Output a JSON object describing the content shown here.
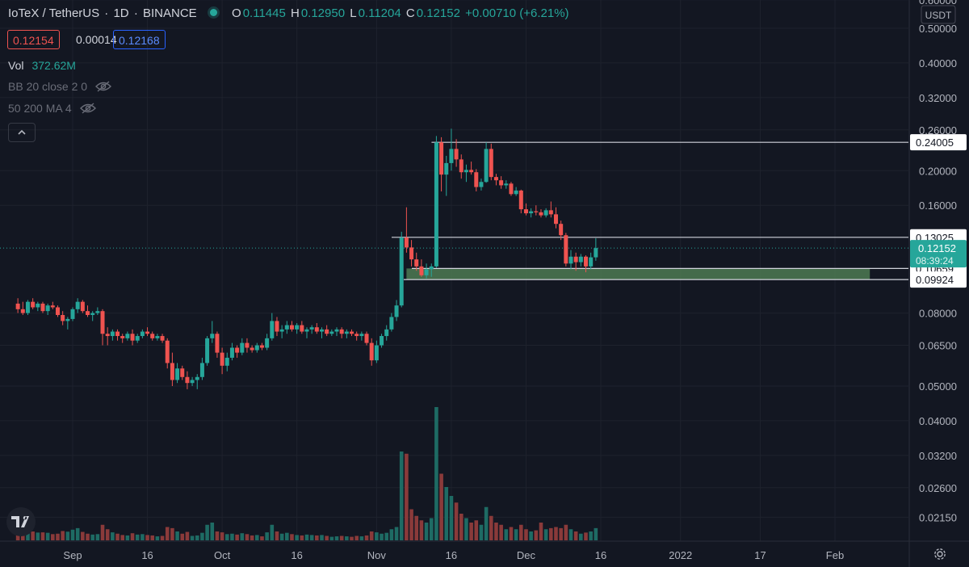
{
  "header": {
    "symbol": "IoTeX / TetherUS",
    "interval": "1D",
    "exchange": "BINANCE",
    "open_label": "O",
    "open": "0.11445",
    "high_label": "H",
    "high": "0.12950",
    "low_label": "L",
    "low": "0.11204",
    "close_label": "C",
    "close": "0.12152",
    "change": "+0.00710 (+6.21%)"
  },
  "quote": {
    "bid": "0.12154",
    "spread": "0.00014",
    "ask": "0.12168"
  },
  "indicators": {
    "vol_label": "Vol",
    "vol_value": "372.62M",
    "bb_label": "BB 20 close 2 0",
    "ma_label": "50 200 MA 4"
  },
  "colors": {
    "background": "#131722",
    "up": "#26a69a",
    "down": "#ef5350",
    "grid": "#1e222d",
    "zone": "#4e7a52"
  },
  "chart_data": {
    "type": "candlestick",
    "y_scale": "log",
    "currency": "USDT",
    "y_ticks": [
      0.6,
      0.5,
      0.4,
      0.32,
      0.26,
      0.2,
      0.16,
      0.08,
      0.065,
      0.05,
      0.04,
      0.032,
      0.026,
      0.0215
    ],
    "y_tick_labels": [
      "0.60000",
      "0.50000",
      "0.40000",
      "0.32000",
      "0.26000",
      "0.20000",
      "0.16000",
      "0.08000",
      "0.06500",
      "0.05000",
      "0.04000",
      "0.03200",
      "0.02600",
      "0.02150"
    ],
    "x_ticks": [
      {
        "label": "Sep",
        "date": "2021-09-01"
      },
      {
        "label": "16",
        "date": "2021-09-16"
      },
      {
        "label": "Oct",
        "date": "2021-10-01"
      },
      {
        "label": "16",
        "date": "2021-10-16"
      },
      {
        "label": "Nov",
        "date": "2021-11-01"
      },
      {
        "label": "16",
        "date": "2021-11-16"
      },
      {
        "label": "Dec",
        "date": "2021-12-01"
      },
      {
        "label": "16",
        "date": "2021-12-16"
      },
      {
        "label": "2022",
        "date": "2022-01-01"
      },
      {
        "label": "17",
        "date": "2022-01-17"
      },
      {
        "label": "Feb",
        "date": "2022-02-01"
      }
    ],
    "horizontal_lines": [
      {
        "price": 0.24005,
        "label": "0.24005"
      },
      {
        "price": 0.13025,
        "label": "0.13025"
      },
      {
        "price": 0.10659,
        "label": "0.10659"
      },
      {
        "price": 0.09924,
        "label": "0.09924"
      }
    ],
    "zone": {
      "top": 0.10659,
      "bottom": 0.09924,
      "start": "2021-11-07",
      "end": "2022-02-08"
    },
    "last_price": {
      "value": "0.12152",
      "countdown": "08:39:24"
    },
    "candles": [
      [
        "2021-08-21",
        0.085,
        0.088,
        0.08,
        0.082,
        45
      ],
      [
        "2021-08-22",
        0.082,
        0.086,
        0.079,
        0.08,
        38
      ],
      [
        "2021-08-23",
        0.08,
        0.087,
        0.079,
        0.086,
        52
      ],
      [
        "2021-08-24",
        0.086,
        0.088,
        0.082,
        0.083,
        40
      ],
      [
        "2021-08-25",
        0.083,
        0.086,
        0.081,
        0.085,
        35
      ],
      [
        "2021-08-26",
        0.085,
        0.086,
        0.08,
        0.081,
        36
      ],
      [
        "2021-08-27",
        0.081,
        0.085,
        0.079,
        0.084,
        34
      ],
      [
        "2021-08-28",
        0.084,
        0.086,
        0.082,
        0.083,
        28
      ],
      [
        "2021-08-29",
        0.083,
        0.084,
        0.078,
        0.079,
        30
      ],
      [
        "2021-08-30",
        0.079,
        0.081,
        0.074,
        0.076,
        42
      ],
      [
        "2021-08-31",
        0.076,
        0.078,
        0.072,
        0.077,
        39
      ],
      [
        "2021-09-01",
        0.077,
        0.083,
        0.076,
        0.082,
        48
      ],
      [
        "2021-09-02",
        0.082,
        0.088,
        0.08,
        0.086,
        55
      ],
      [
        "2021-09-03",
        0.086,
        0.087,
        0.08,
        0.081,
        38
      ],
      [
        "2021-09-04",
        0.081,
        0.084,
        0.078,
        0.079,
        30
      ],
      [
        "2021-09-05",
        0.079,
        0.081,
        0.076,
        0.08,
        26
      ],
      [
        "2021-09-06",
        0.08,
        0.083,
        0.079,
        0.081,
        28
      ],
      [
        "2021-09-07",
        0.081,
        0.082,
        0.065,
        0.07,
        70
      ],
      [
        "2021-09-08",
        0.07,
        0.073,
        0.065,
        0.069,
        50
      ],
      [
        "2021-09-09",
        0.069,
        0.072,
        0.067,
        0.071,
        36
      ],
      [
        "2021-09-10",
        0.071,
        0.072,
        0.067,
        0.069,
        30
      ],
      [
        "2021-09-11",
        0.069,
        0.07,
        0.066,
        0.068,
        24
      ],
      [
        "2021-09-12",
        0.068,
        0.071,
        0.067,
        0.07,
        22
      ],
      [
        "2021-09-13",
        0.07,
        0.072,
        0.065,
        0.067,
        32
      ],
      [
        "2021-09-14",
        0.067,
        0.07,
        0.066,
        0.069,
        26
      ],
      [
        "2021-09-15",
        0.069,
        0.072,
        0.068,
        0.071,
        28
      ],
      [
        "2021-09-16",
        0.071,
        0.073,
        0.069,
        0.07,
        24
      ],
      [
        "2021-09-17",
        0.07,
        0.071,
        0.067,
        0.068,
        22
      ],
      [
        "2021-09-18",
        0.068,
        0.07,
        0.067,
        0.069,
        18
      ],
      [
        "2021-09-19",
        0.069,
        0.07,
        0.066,
        0.067,
        20
      ],
      [
        "2021-09-20",
        0.067,
        0.068,
        0.056,
        0.058,
        60
      ],
      [
        "2021-09-21",
        0.058,
        0.062,
        0.05,
        0.052,
        55
      ],
      [
        "2021-09-22",
        0.052,
        0.058,
        0.051,
        0.056,
        40
      ],
      [
        "2021-09-23",
        0.056,
        0.057,
        0.052,
        0.053,
        30
      ],
      [
        "2021-09-24",
        0.053,
        0.055,
        0.049,
        0.051,
        38
      ],
      [
        "2021-09-25",
        0.051,
        0.053,
        0.05,
        0.052,
        20
      ],
      [
        "2021-09-26",
        0.052,
        0.054,
        0.049,
        0.053,
        22
      ],
      [
        "2021-09-27",
        0.053,
        0.06,
        0.052,
        0.058,
        34
      ],
      [
        "2021-09-28",
        0.058,
        0.069,
        0.057,
        0.068,
        70
      ],
      [
        "2021-09-29",
        0.068,
        0.076,
        0.066,
        0.07,
        80
      ],
      [
        "2021-09-30",
        0.07,
        0.071,
        0.06,
        0.062,
        40
      ],
      [
        "2021-10-01",
        0.062,
        0.064,
        0.054,
        0.057,
        36
      ],
      [
        "2021-10-02",
        0.057,
        0.062,
        0.055,
        0.06,
        28
      ],
      [
        "2021-10-03",
        0.06,
        0.066,
        0.059,
        0.064,
        30
      ],
      [
        "2021-10-04",
        0.064,
        0.065,
        0.06,
        0.062,
        26
      ],
      [
        "2021-10-05",
        0.062,
        0.068,
        0.061,
        0.066,
        32
      ],
      [
        "2021-10-06",
        0.066,
        0.068,
        0.062,
        0.064,
        28
      ],
      [
        "2021-10-07",
        0.064,
        0.065,
        0.062,
        0.063,
        22
      ],
      [
        "2021-10-08",
        0.063,
        0.066,
        0.062,
        0.065,
        24
      ],
      [
        "2021-10-09",
        0.065,
        0.066,
        0.063,
        0.064,
        18
      ],
      [
        "2021-10-10",
        0.064,
        0.07,
        0.063,
        0.068,
        36
      ],
      [
        "2021-10-11",
        0.068,
        0.08,
        0.067,
        0.076,
        70
      ],
      [
        "2021-10-12",
        0.076,
        0.078,
        0.069,
        0.071,
        40
      ],
      [
        "2021-10-13",
        0.071,
        0.074,
        0.068,
        0.072,
        30
      ],
      [
        "2021-10-14",
        0.072,
        0.076,
        0.07,
        0.074,
        34
      ],
      [
        "2021-10-15",
        0.074,
        0.076,
        0.071,
        0.072,
        28
      ],
      [
        "2021-10-16",
        0.072,
        0.075,
        0.07,
        0.074,
        24
      ],
      [
        "2021-10-17",
        0.074,
        0.076,
        0.07,
        0.071,
        22
      ],
      [
        "2021-10-18",
        0.071,
        0.073,
        0.068,
        0.072,
        26
      ],
      [
        "2021-10-19",
        0.072,
        0.074,
        0.07,
        0.073,
        24
      ],
      [
        "2021-10-20",
        0.073,
        0.075,
        0.07,
        0.071,
        22
      ],
      [
        "2021-10-21",
        0.071,
        0.073,
        0.068,
        0.072,
        24
      ],
      [
        "2021-10-22",
        0.072,
        0.074,
        0.069,
        0.07,
        20
      ],
      [
        "2021-10-23",
        0.07,
        0.072,
        0.069,
        0.071,
        16
      ],
      [
        "2021-10-24",
        0.071,
        0.073,
        0.069,
        0.072,
        18
      ],
      [
        "2021-10-25",
        0.072,
        0.073,
        0.068,
        0.07,
        20
      ],
      [
        "2021-10-26",
        0.07,
        0.072,
        0.068,
        0.071,
        18
      ],
      [
        "2021-10-27",
        0.071,
        0.072,
        0.069,
        0.07,
        16
      ],
      [
        "2021-10-28",
        0.07,
        0.071,
        0.067,
        0.069,
        20
      ],
      [
        "2021-10-29",
        0.069,
        0.071,
        0.067,
        0.07,
        18
      ],
      [
        "2021-10-30",
        0.07,
        0.071,
        0.065,
        0.066,
        22
      ],
      [
        "2021-10-31",
        0.066,
        0.068,
        0.057,
        0.059,
        40
      ],
      [
        "2021-11-01",
        0.059,
        0.067,
        0.058,
        0.065,
        36
      ],
      [
        "2021-11-02",
        0.065,
        0.07,
        0.064,
        0.069,
        30
      ],
      [
        "2021-11-03",
        0.069,
        0.074,
        0.067,
        0.072,
        34
      ],
      [
        "2021-11-04",
        0.072,
        0.08,
        0.071,
        0.078,
        50
      ],
      [
        "2021-11-05",
        0.078,
        0.087,
        0.076,
        0.084,
        60
      ],
      [
        "2021-11-06",
        0.084,
        0.135,
        0.083,
        0.13,
        400
      ],
      [
        "2021-11-07",
        0.13,
        0.158,
        0.118,
        0.122,
        390
      ],
      [
        "2021-11-08",
        0.122,
        0.128,
        0.108,
        0.113,
        140
      ],
      [
        "2021-11-09",
        0.113,
        0.118,
        0.105,
        0.108,
        110
      ],
      [
        "2021-11-10",
        0.108,
        0.113,
        0.101,
        0.102,
        90
      ],
      [
        "2021-11-11",
        0.102,
        0.11,
        0.1,
        0.106,
        80
      ],
      [
        "2021-11-12",
        0.106,
        0.11,
        0.101,
        0.108,
        100
      ],
      [
        "2021-11-13",
        0.108,
        0.25,
        0.107,
        0.24,
        600
      ],
      [
        "2021-11-14",
        0.24,
        0.248,
        0.175,
        0.195,
        300
      ],
      [
        "2021-11-15",
        0.195,
        0.22,
        0.17,
        0.21,
        240
      ],
      [
        "2021-11-16",
        0.21,
        0.262,
        0.2,
        0.23,
        200
      ],
      [
        "2021-11-17",
        0.23,
        0.245,
        0.205,
        0.215,
        170
      ],
      [
        "2021-11-18",
        0.215,
        0.222,
        0.19,
        0.198,
        120
      ],
      [
        "2021-11-19",
        0.198,
        0.208,
        0.186,
        0.201,
        100
      ],
      [
        "2021-11-20",
        0.201,
        0.212,
        0.195,
        0.198,
        80
      ],
      [
        "2021-11-21",
        0.198,
        0.202,
        0.175,
        0.18,
        90
      ],
      [
        "2021-11-22",
        0.18,
        0.19,
        0.176,
        0.186,
        70
      ],
      [
        "2021-11-23",
        0.186,
        0.24,
        0.185,
        0.23,
        150
      ],
      [
        "2021-11-24",
        0.23,
        0.238,
        0.188,
        0.192,
        110
      ],
      [
        "2021-11-25",
        0.192,
        0.196,
        0.182,
        0.188,
        80
      ],
      [
        "2021-11-26",
        0.188,
        0.193,
        0.178,
        0.182,
        70
      ],
      [
        "2021-11-27",
        0.182,
        0.188,
        0.178,
        0.184,
        50
      ],
      [
        "2021-11-28",
        0.184,
        0.186,
        0.17,
        0.172,
        60
      ],
      [
        "2021-11-29",
        0.172,
        0.18,
        0.17,
        0.176,
        50
      ],
      [
        "2021-11-30",
        0.176,
        0.177,
        0.152,
        0.156,
        70
      ],
      [
        "2021-12-01",
        0.156,
        0.162,
        0.15,
        0.152,
        50
      ],
      [
        "2021-12-02",
        0.152,
        0.157,
        0.148,
        0.154,
        40
      ],
      [
        "2021-12-03",
        0.154,
        0.16,
        0.15,
        0.153,
        45
      ],
      [
        "2021-12-04",
        0.153,
        0.156,
        0.148,
        0.15,
        80
      ],
      [
        "2021-12-05",
        0.15,
        0.157,
        0.148,
        0.155,
        50
      ],
      [
        "2021-12-06",
        0.155,
        0.164,
        0.148,
        0.151,
        55
      ],
      [
        "2021-12-07",
        0.151,
        0.158,
        0.138,
        0.142,
        60
      ],
      [
        "2021-12-08",
        0.142,
        0.145,
        0.128,
        0.132,
        55
      ],
      [
        "2021-12-09",
        0.132,
        0.134,
        0.108,
        0.11,
        70
      ],
      [
        "2021-12-10",
        0.11,
        0.12,
        0.106,
        0.115,
        50
      ],
      [
        "2021-12-11",
        0.115,
        0.118,
        0.105,
        0.111,
        40
      ],
      [
        "2021-12-12",
        0.111,
        0.117,
        0.108,
        0.115,
        30
      ],
      [
        "2021-12-13",
        0.115,
        0.116,
        0.104,
        0.108,
        35
      ],
      [
        "2021-12-14",
        0.108,
        0.118,
        0.106,
        0.1145,
        40
      ],
      [
        "2021-12-15",
        0.1145,
        0.1295,
        0.112,
        0.1215,
        55
      ]
    ]
  }
}
